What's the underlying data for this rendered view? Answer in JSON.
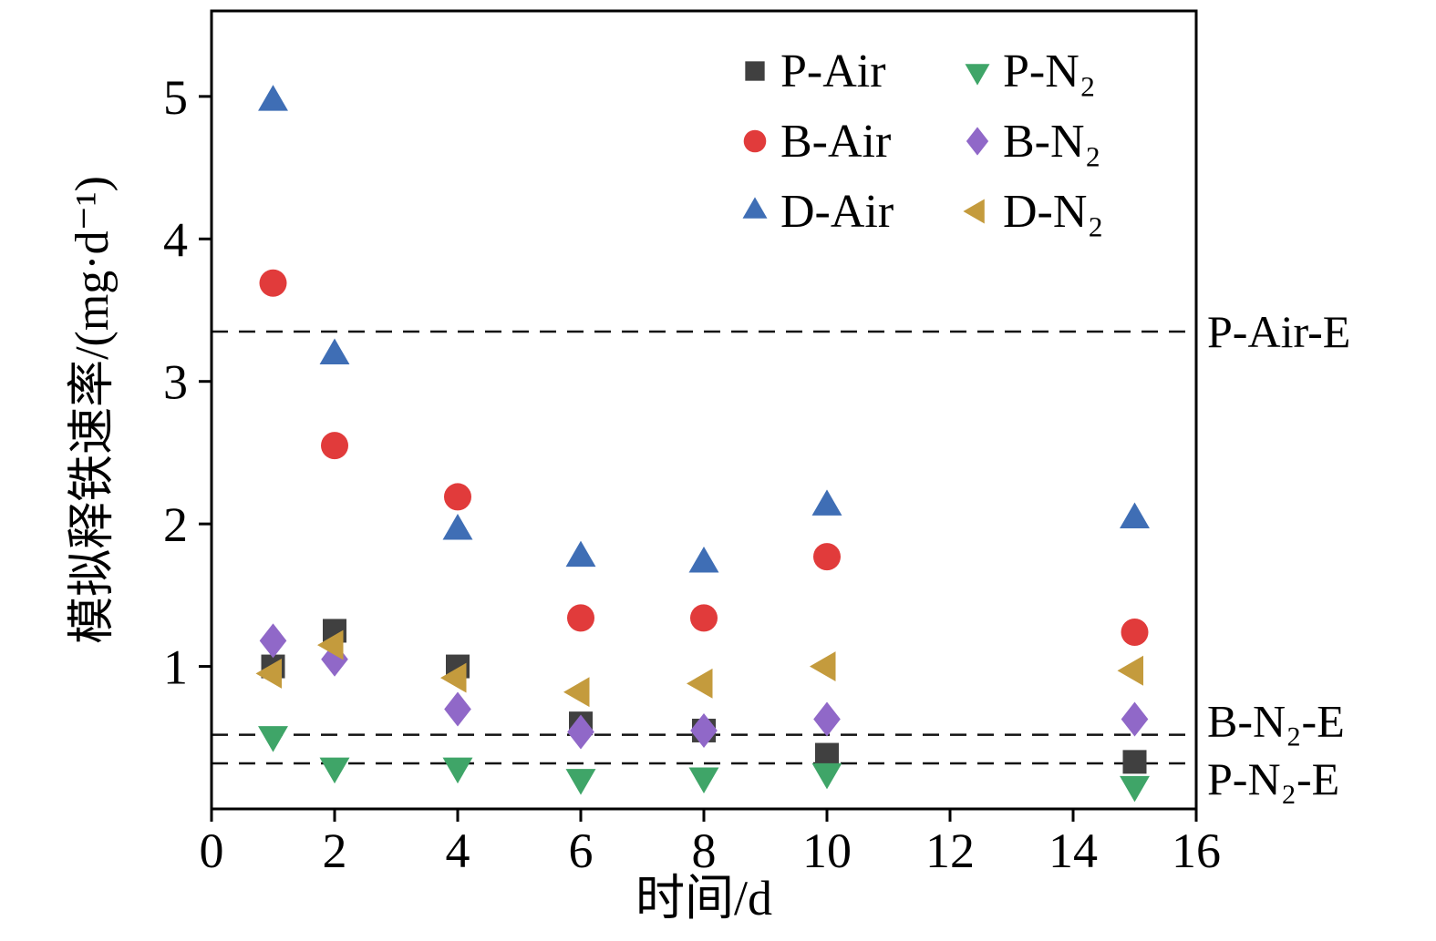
{
  "chart_data": {
    "type": "scatter",
    "xlabel": "时间/d",
    "ylabel": "模拟释铁速率/(mg·d⁻¹)",
    "xlim": [
      0,
      16
    ],
    "ylim": [
      0,
      5.6
    ],
    "xticks": [
      0,
      2,
      4,
      6,
      8,
      10,
      12,
      14,
      16
    ],
    "yticks": [
      1,
      2,
      3,
      4,
      5
    ],
    "grid": false,
    "legend_position": "top-right-inside",
    "x": [
      1,
      2,
      4,
      6,
      8,
      10,
      15
    ],
    "series": [
      {
        "name": "P-Air",
        "marker": "square",
        "color": "#404040",
        "values": [
          1.0,
          1.25,
          1.0,
          0.6,
          0.55,
          0.38,
          0.33
        ]
      },
      {
        "name": "B-Air",
        "marker": "circle",
        "color": "#e13b3b",
        "values": [
          3.69,
          2.55,
          2.19,
          1.34,
          1.34,
          1.77,
          1.24
        ]
      },
      {
        "name": "D-Air",
        "marker": "triangle-up",
        "color": "#3f6eb5",
        "values": [
          4.96,
          3.18,
          1.95,
          1.76,
          1.72,
          2.12,
          2.03
        ]
      },
      {
        "name": "P-N₂",
        "marker": "triangle-down",
        "color": "#3fa568",
        "values": [
          0.52,
          0.3,
          0.3,
          0.22,
          0.23,
          0.26,
          0.17
        ]
      },
      {
        "name": "B-N₂",
        "marker": "diamond",
        "color": "#9068c8",
        "values": [
          1.18,
          1.05,
          0.7,
          0.54,
          0.55,
          0.63,
          0.63
        ]
      },
      {
        "name": "D-N₂",
        "marker": "triangle-left",
        "color": "#c49b3d",
        "values": [
          0.95,
          1.15,
          0.92,
          0.82,
          0.88,
          1.0,
          0.97
        ]
      }
    ],
    "reference_lines": [
      {
        "label": "P-Air-E",
        "y": 3.35
      },
      {
        "label": "B-N₂-E",
        "y": 0.52
      },
      {
        "label": "P-N₂-E",
        "y": 0.32
      }
    ]
  }
}
